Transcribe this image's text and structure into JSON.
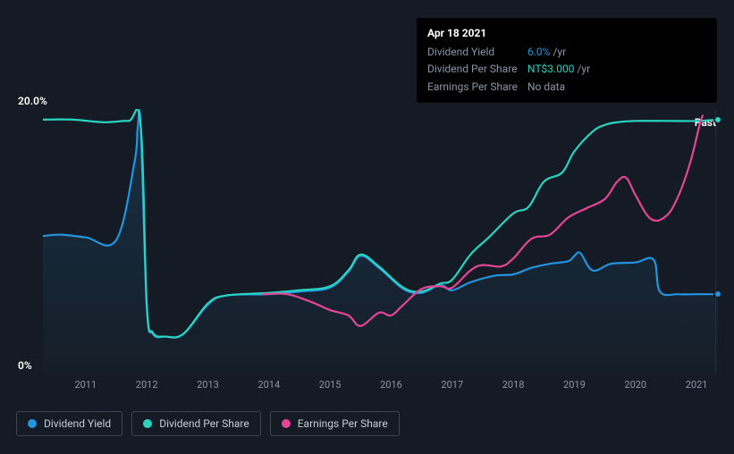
{
  "tooltip": {
    "date": "Apr 18 2021",
    "rows": [
      {
        "label": "Dividend Yield",
        "value": "6.0%",
        "unit": "/yr",
        "color": "#2394df"
      },
      {
        "label": "Dividend Per Share",
        "value": "NT$3.000",
        "unit": "/yr",
        "color": "#2ad4c2"
      },
      {
        "label": "Earnings Per Share",
        "value": "No data",
        "unit": "",
        "color": "#8a96a8"
      }
    ]
  },
  "chart": {
    "type": "line",
    "background_color": "#151b24",
    "plot_fill_top": "#1a2230",
    "plot_fill_bottom": "#151b24",
    "grid_color": "rgba(255,255,255,0.02)",
    "y_axis": {
      "top_label": "20.0%",
      "bottom_label": "0%",
      "min": 0,
      "max": 20
    },
    "past_label": "Past",
    "x_axis": {
      "min": 2010.3,
      "max": 2021.35,
      "ticks": [
        2011,
        2012,
        2013,
        2014,
        2015,
        2016,
        2017,
        2018,
        2019,
        2020,
        2021
      ]
    },
    "cursor_x": 2021.3,
    "line_width": 2.2,
    "series": [
      {
        "name": "Dividend Yield",
        "color": "#2394df",
        "fill": true,
        "fill_color": "rgba(35,148,223,0.10)",
        "points": [
          [
            2010.3,
            10.4
          ],
          [
            2010.6,
            10.5
          ],
          [
            2011.0,
            10.3
          ],
          [
            2011.5,
            10.1
          ],
          [
            2011.8,
            16.0
          ],
          [
            2011.85,
            18.5
          ],
          [
            2011.9,
            18.8
          ],
          [
            2012.0,
            5.1
          ],
          [
            2012.1,
            3.0
          ],
          [
            2012.3,
            2.8
          ],
          [
            2012.6,
            3.0
          ],
          [
            2013.0,
            5.2
          ],
          [
            2013.3,
            5.9
          ],
          [
            2014.0,
            6.0
          ],
          [
            2014.5,
            6.2
          ],
          [
            2015.0,
            6.5
          ],
          [
            2015.3,
            7.7
          ],
          [
            2015.5,
            8.9
          ],
          [
            2015.8,
            8.0
          ],
          [
            2016.2,
            6.4
          ],
          [
            2016.5,
            6.1
          ],
          [
            2016.8,
            6.7
          ],
          [
            2017.0,
            6.3
          ],
          [
            2017.3,
            6.9
          ],
          [
            2017.7,
            7.4
          ],
          [
            2018.0,
            7.5
          ],
          [
            2018.3,
            8.0
          ],
          [
            2018.6,
            8.3
          ],
          [
            2018.9,
            8.5
          ],
          [
            2019.0,
            8.9
          ],
          [
            2019.1,
            9.1
          ],
          [
            2019.3,
            7.8
          ],
          [
            2019.6,
            8.3
          ],
          [
            2020.0,
            8.4
          ],
          [
            2020.3,
            8.6
          ],
          [
            2020.4,
            6.2
          ],
          [
            2020.7,
            6.0
          ],
          [
            2021.0,
            6.0
          ],
          [
            2021.35,
            6.0
          ]
        ],
        "end_dot": true
      },
      {
        "name": "Dividend Per Share",
        "color": "#2ad4c2",
        "fill": false,
        "points": [
          [
            2010.3,
            19.2
          ],
          [
            2010.8,
            19.2
          ],
          [
            2011.3,
            19.0
          ],
          [
            2011.7,
            19.1
          ],
          [
            2011.9,
            18.8
          ],
          [
            2012.0,
            5.2
          ],
          [
            2012.1,
            3.1
          ],
          [
            2012.3,
            2.8
          ],
          [
            2012.6,
            3.0
          ],
          [
            2013.0,
            5.3
          ],
          [
            2013.3,
            5.9
          ],
          [
            2014.0,
            6.1
          ],
          [
            2014.5,
            6.3
          ],
          [
            2015.0,
            6.6
          ],
          [
            2015.3,
            7.8
          ],
          [
            2015.5,
            9.0
          ],
          [
            2015.8,
            8.1
          ],
          [
            2016.2,
            6.5
          ],
          [
            2016.5,
            6.2
          ],
          [
            2016.8,
            6.8
          ],
          [
            2017.0,
            7.1
          ],
          [
            2017.3,
            9.0
          ],
          [
            2017.6,
            10.3
          ],
          [
            2018.0,
            12.1
          ],
          [
            2018.25,
            12.6
          ],
          [
            2018.5,
            14.5
          ],
          [
            2018.8,
            15.2
          ],
          [
            2019.0,
            16.8
          ],
          [
            2019.3,
            18.3
          ],
          [
            2019.5,
            18.8
          ],
          [
            2019.7,
            19.0
          ],
          [
            2020.0,
            19.1
          ],
          [
            2020.5,
            19.1
          ],
          [
            2021.0,
            19.1
          ],
          [
            2021.35,
            19.2
          ]
        ],
        "end_dot": true
      },
      {
        "name": "Earnings Per Share",
        "color": "#e64595",
        "fill": false,
        "points": [
          [
            2013.9,
            6.0
          ],
          [
            2014.3,
            6.0
          ],
          [
            2014.7,
            5.4
          ],
          [
            2015.0,
            4.8
          ],
          [
            2015.3,
            4.4
          ],
          [
            2015.5,
            3.6
          ],
          [
            2015.8,
            4.6
          ],
          [
            2016.0,
            4.4
          ],
          [
            2016.2,
            5.2
          ],
          [
            2016.5,
            6.4
          ],
          [
            2016.8,
            6.6
          ],
          [
            2017.0,
            6.5
          ],
          [
            2017.3,
            7.8
          ],
          [
            2017.5,
            8.2
          ],
          [
            2017.8,
            8.1
          ],
          [
            2018.0,
            8.7
          ],
          [
            2018.3,
            10.2
          ],
          [
            2018.6,
            10.5
          ],
          [
            2018.9,
            11.8
          ],
          [
            2019.2,
            12.5
          ],
          [
            2019.5,
            13.2
          ],
          [
            2019.7,
            14.5
          ],
          [
            2019.85,
            14.8
          ],
          [
            2020.0,
            13.5
          ],
          [
            2020.25,
            11.7
          ],
          [
            2020.5,
            11.9
          ],
          [
            2020.7,
            13.4
          ],
          [
            2020.9,
            16.0
          ],
          [
            2021.05,
            18.8
          ],
          [
            2021.1,
            19.5
          ]
        ],
        "end_dot": false
      }
    ],
    "legend": [
      {
        "label": "Dividend Yield",
        "color": "#2394df"
      },
      {
        "label": "Dividend Per Share",
        "color": "#2ad4c2"
      },
      {
        "label": "Earnings Per Share",
        "color": "#e64595"
      }
    ]
  }
}
